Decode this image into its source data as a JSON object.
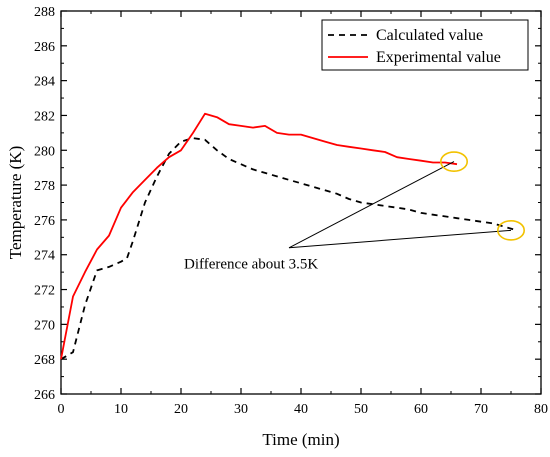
{
  "chart_data": {
    "type": "line",
    "xlabel": "Time (min)",
    "ylabel": "Temperature (K)",
    "xlim": [
      0,
      80
    ],
    "ylim": [
      266,
      288
    ],
    "xticks": [
      0,
      10,
      20,
      30,
      40,
      50,
      60,
      70,
      80
    ],
    "yticks": [
      266,
      268,
      270,
      272,
      274,
      276,
      278,
      280,
      282,
      284,
      286,
      288
    ],
    "grid": false,
    "legend_position": "top-right",
    "series": [
      {
        "name": "Calculated value",
        "color": "#000000",
        "dash": "dashed",
        "x": [
          0,
          2,
          4,
          6,
          8,
          10,
          11,
          12,
          14,
          16,
          18,
          20,
          22,
          24,
          26,
          28,
          30,
          32,
          34,
          36,
          38,
          40,
          42,
          44,
          46,
          48,
          50,
          52,
          54,
          56,
          58,
          60,
          62,
          64,
          66,
          68,
          70,
          72,
          74,
          76
        ],
        "y": [
          268.0,
          268.4,
          271.1,
          273.1,
          273.3,
          273.6,
          273.8,
          274.8,
          277.0,
          278.5,
          279.8,
          280.5,
          280.7,
          280.6,
          280.0,
          279.5,
          279.2,
          278.9,
          278.7,
          278.5,
          278.3,
          278.1,
          277.9,
          277.7,
          277.5,
          277.2,
          277.0,
          276.9,
          276.8,
          276.7,
          276.6,
          276.4,
          276.3,
          276.2,
          276.1,
          276.0,
          275.9,
          275.8,
          275.6,
          275.4
        ]
      },
      {
        "name": "Experimental value",
        "color": "#ff0000",
        "dash": "solid",
        "x": [
          0,
          2,
          4,
          6,
          8,
          10,
          12,
          14,
          16,
          18,
          20,
          22,
          24,
          26,
          28,
          30,
          32,
          34,
          36,
          38,
          40,
          42,
          44,
          46,
          48,
          50,
          52,
          54,
          56,
          58,
          60,
          62,
          64,
          66
        ],
        "y": [
          268.0,
          271.6,
          273.0,
          274.3,
          275.1,
          276.7,
          277.6,
          278.3,
          279.0,
          279.6,
          280.0,
          281.0,
          282.1,
          281.9,
          281.5,
          281.4,
          281.3,
          281.4,
          281.0,
          280.9,
          280.9,
          280.7,
          280.5,
          280.3,
          280.2,
          280.1,
          280.0,
          279.9,
          279.6,
          279.5,
          279.4,
          279.3,
          279.3,
          279.2
        ]
      }
    ],
    "annotations": [
      {
        "text": "Difference about 3.5K",
        "anchor_x": 38,
        "anchor_y": 274.4,
        "text_x": 20.5,
        "text_y": 273.2,
        "targets": [
          {
            "x": 65.5,
            "y": 279.35,
            "ellipse_rx": 2.2,
            "ellipse_ry": 0.55,
            "ellipse_color": "#f2c200"
          },
          {
            "x": 75.0,
            "y": 275.4,
            "ellipse_rx": 2.2,
            "ellipse_ry": 0.55,
            "ellipse_color": "#f2c200"
          }
        ]
      }
    ]
  }
}
